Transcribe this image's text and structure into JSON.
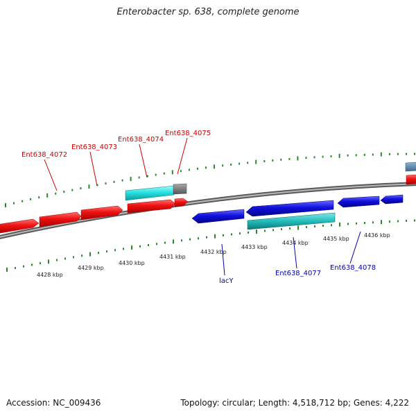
{
  "header": {
    "title": "Enterobacter sp. 638, complete genome"
  },
  "footer": {
    "accession": "Accession: NC_009436",
    "summary": "Topology: circular; Length: 4,518,712 bp; Genes: 4,222"
  },
  "colors": {
    "backbone": "#8a8a8a",
    "ticks": "#2a8a2a",
    "forward_cds": "#ee1111",
    "forward_rna": "#22dddd",
    "reverse_cds": "#1111dd",
    "reverse_rna": "#22bbbb",
    "partial": "#777777",
    "edge_gene": "#4d7fa8",
    "label_top": "#cc0000",
    "label_bottom": "#0000aa"
  },
  "scale": {
    "tick_labels": [
      "4428 kbp",
      "4429 kbp",
      "4430 kbp",
      "4431 kbp",
      "4432 kbp",
      "4433 kbp",
      "4434 kbp",
      "4435 kbp",
      "4436 kbp"
    ]
  },
  "genes_top": [
    {
      "name": "Ent638_4072",
      "color": "#cc0000"
    },
    {
      "name": "Ent638_4073",
      "color": "#cc0000"
    },
    {
      "name": "Ent638_4074",
      "color": "#cc0000"
    },
    {
      "name": "Ent638_4075",
      "color": "#cc0000"
    }
  ],
  "genes_bottom": [
    {
      "name": "lacY",
      "color": "#0000aa"
    },
    {
      "name": "Ent638_4077",
      "color": "#0000aa"
    },
    {
      "name": "Ent638_4078",
      "color": "#0000aa"
    }
  ]
}
